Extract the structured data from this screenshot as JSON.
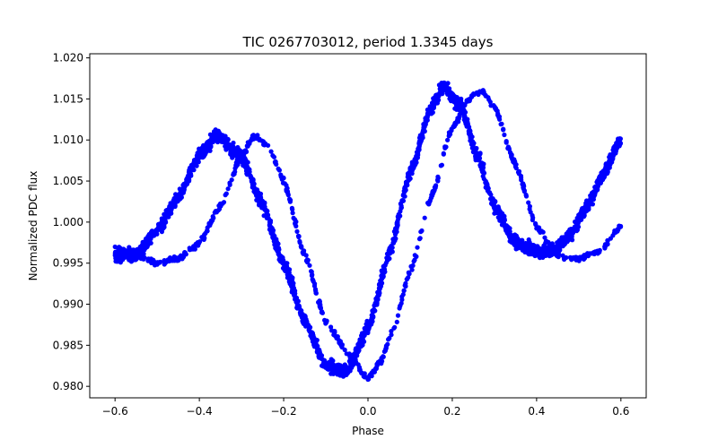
{
  "chart_data": {
    "type": "scatter",
    "title": "TIC 0267703012, period 1.3345 days",
    "xlabel": "Phase",
    "ylabel": "Normalized PDC flux",
    "xlim": [
      -0.66,
      0.66
    ],
    "ylim": [
      0.9786,
      1.0205
    ],
    "xticks": [
      -0.6,
      -0.4,
      -0.2,
      0.0,
      0.2,
      0.4,
      0.6
    ],
    "xtick_labels": [
      "−0.6",
      "−0.4",
      "−0.2",
      "0.0",
      "0.2",
      "0.4",
      "0.6"
    ],
    "yticks": [
      0.98,
      0.985,
      0.99,
      0.995,
      1.0,
      1.005,
      1.01,
      1.015,
      1.02
    ],
    "ytick_labels": [
      "0.980",
      "0.985",
      "0.990",
      "0.995",
      "1.000",
      "1.005",
      "1.010",
      "1.015",
      "1.020"
    ],
    "grid": false,
    "marker_color": "#0000ff",
    "series": [
      {
        "x": [
          -0.6,
          -0.55,
          -0.5,
          -0.45,
          -0.4,
          -0.36,
          -0.3,
          -0.25,
          -0.2,
          -0.15,
          -0.1,
          -0.05,
          0.0,
          0.05,
          0.1,
          0.15,
          0.18,
          0.22,
          0.26,
          0.3,
          0.35,
          0.4,
          0.44,
          0.48,
          0.52,
          0.56,
          0.6
        ],
        "y": [
          0.996,
          0.996,
          0.999,
          1.003,
          1.008,
          1.0105,
          1.008,
          1.002,
          0.995,
          0.988,
          0.9825,
          0.9818,
          0.987,
          0.996,
          1.006,
          1.014,
          1.0165,
          1.014,
          1.008,
          1.002,
          0.9975,
          0.9965,
          0.9965,
          0.9985,
          1.002,
          1.006,
          1.01
        ]
      },
      {
        "x": [
          -0.6,
          -0.55,
          -0.5,
          -0.45,
          -0.4,
          -0.35,
          -0.3,
          -0.27,
          -0.24,
          -0.2,
          -0.15,
          -0.1,
          -0.08,
          -0.05,
          0.0,
          0.03,
          0.06,
          0.1,
          0.15,
          0.2,
          0.24,
          0.27,
          0.3,
          0.35,
          0.4,
          0.45,
          0.5,
          0.55,
          0.6
        ],
        "y": [
          0.997,
          0.996,
          0.995,
          0.9955,
          0.9975,
          1.002,
          1.008,
          1.0105,
          1.0095,
          1.005,
          0.996,
          0.988,
          0.9865,
          0.984,
          0.981,
          0.983,
          0.987,
          0.994,
          1.003,
          1.0115,
          1.015,
          1.016,
          1.014,
          1.007,
          0.9995,
          0.996,
          0.9955,
          0.9965,
          0.9995
        ]
      }
    ]
  }
}
